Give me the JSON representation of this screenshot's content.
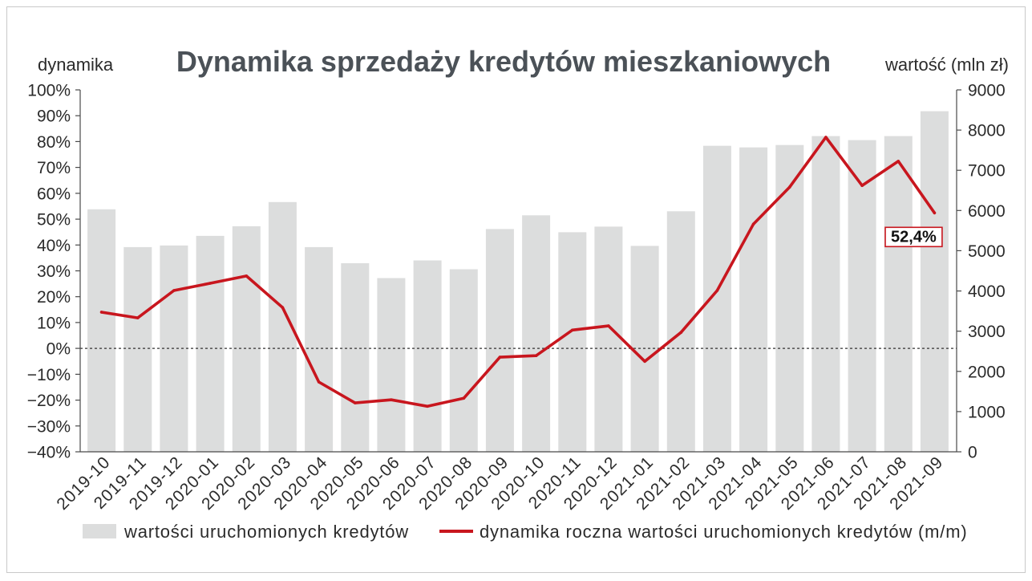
{
  "chart_data": {
    "type": "bar",
    "title": "Dynamika sprzedaży kredytów mieszkaniowych",
    "categories": [
      "2019-10",
      "2019-11",
      "2019-12",
      "2020-01",
      "2020-02",
      "2020-03",
      "2020-04",
      "2020-05",
      "2020-06",
      "2020-07",
      "2020-08",
      "2020-09",
      "2020-10",
      "2020-11",
      "2020-12",
      "2021-01",
      "2021-02",
      "2021-03",
      "2021-04",
      "2021-05",
      "2021-06",
      "2021-07",
      "2021-08",
      "2021-09"
    ],
    "y_left": {
      "label": "dynamika",
      "range": [
        -40,
        100
      ],
      "ticks": [
        100,
        90,
        80,
        70,
        60,
        50,
        40,
        30,
        20,
        10,
        0,
        -10,
        -20,
        -30,
        -40
      ],
      "tick_labels": [
        "100%",
        "90%",
        "80%",
        "70%",
        "60%",
        "50%",
        "40%",
        "30%",
        "20%",
        "10%",
        "0%",
        "−10%",
        "−20%",
        "−30%",
        "−40%"
      ]
    },
    "y_right": {
      "label": "wartość (mln zł)",
      "range": [
        0,
        9000
      ],
      "ticks": [
        9000,
        8000,
        7000,
        6000,
        5000,
        4000,
        3000,
        2000,
        1000,
        0
      ],
      "tick_labels": [
        "9000",
        "8000",
        "7000",
        "6000",
        "5000",
        "4000",
        "3000",
        "2000",
        "1000",
        "0"
      ]
    },
    "series": [
      {
        "name": "wartości uruchomionych kredytów",
        "type": "bar",
        "secondary_axis": true,
        "color": "#dcdddd",
        "values": [
          6030,
          5090,
          5130,
          5370,
          5610,
          6210,
          5090,
          4690,
          4320,
          4760,
          4540,
          5540,
          5880,
          5460,
          5600,
          5120,
          5980,
          7610,
          7570,
          7630,
          7850,
          7750,
          7850,
          8470
        ]
      },
      {
        "name": "dynamika roczna wartości uruchomionych kredytów (m/m)",
        "type": "line",
        "secondary_axis": false,
        "color": "#c8161e",
        "values": [
          14.0,
          11.8,
          22.4,
          25.2,
          28.0,
          15.8,
          -13.0,
          -21.1,
          -19.9,
          -22.4,
          -19.3,
          -3.4,
          -2.8,
          7.1,
          8.7,
          -5.0,
          6.2,
          22.4,
          48.1,
          62.4,
          81.7,
          63.0,
          72.4,
          52.4
        ]
      }
    ],
    "reference_line": 0,
    "annotation": {
      "text": "52,4%",
      "series_index": 1,
      "point_index": 23,
      "border_color": "#c8161e"
    },
    "legend": "bottom",
    "grid": false
  }
}
